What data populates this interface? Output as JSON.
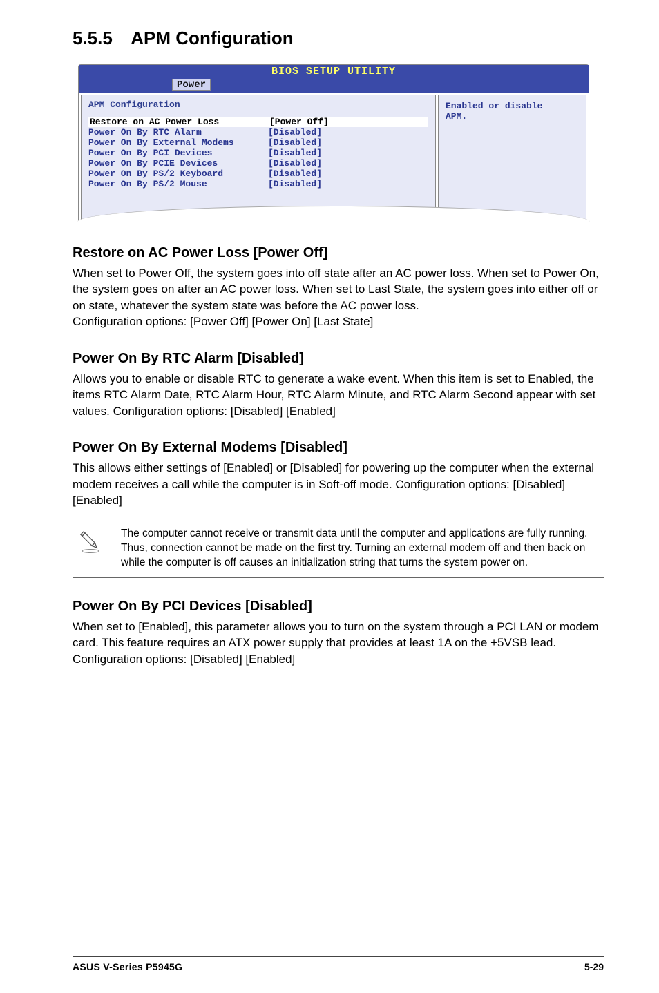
{
  "section": {
    "number": "5.5.5",
    "title": "APM Configuration"
  },
  "bios": {
    "headerTitle": "BIOS SETUP UTILITY",
    "tab": "Power",
    "panelTitle": "APM Configuration",
    "help1": "Enabled or disable",
    "help2": "APM.",
    "rows": [
      {
        "label": "Restore on AC Power Loss",
        "value": "[Power Off]",
        "selected": true
      },
      {
        "label": "Power On By RTC Alarm",
        "value": "[Disabled]"
      },
      {
        "label": "Power On By External Modems",
        "value": "[Disabled]"
      },
      {
        "label": "Power On By PCI Devices",
        "value": "[Disabled]"
      },
      {
        "label": "Power On By PCIE Devices",
        "value": "[Disabled]"
      },
      {
        "label": "Power On By PS/2 Keyboard",
        "value": "[Disabled]"
      },
      {
        "label": "Power On By PS/2 Mouse",
        "value": "[Disabled]"
      }
    ]
  },
  "s1": {
    "head": "Restore on AC Power Loss [Power Off]",
    "body": "When set to Power Off, the system goes into off state after an AC power loss. When set to Power On, the system goes on after an AC power loss. When set to Last State, the system goes into either off or on state, whatever the system state was before the AC power loss.\nConfiguration options: [Power Off] [Power On] [Last State]"
  },
  "s2": {
    "head": "Power On By RTC Alarm [Disabled]",
    "body": "Allows you to enable or disable RTC to generate a wake event. When this item is set to Enabled, the items RTC Alarm Date, RTC Alarm Hour, RTC Alarm Minute, and RTC Alarm Second appear with set values. Configuration options: [Disabled] [Enabled]"
  },
  "s3": {
    "head": "Power On By External Modems [Disabled]",
    "body": "This allows either settings of [Enabled] or [Disabled] for powering up the computer when the external modem receives a call while the computer is in Soft-off mode. Configuration options: [Disabled] [Enabled]"
  },
  "note": {
    "text": "The computer cannot receive or transmit data until the computer and applications are fully running. Thus, connection cannot be made on the first try. Turning an external modem off and then back on while the computer is off causes an initialization string that turns the system power on."
  },
  "s4": {
    "head": "Power On By PCI Devices [Disabled]",
    "body": "When set to [Enabled], this parameter allows you to turn on the system through a PCI LAN or modem card. This feature requires an ATX power supply that provides at least 1A on the +5VSB lead.\nConfiguration options: [Disabled] [Enabled]"
  },
  "footer": {
    "left": "ASUS V-Series P5945G",
    "right": "5-29"
  }
}
